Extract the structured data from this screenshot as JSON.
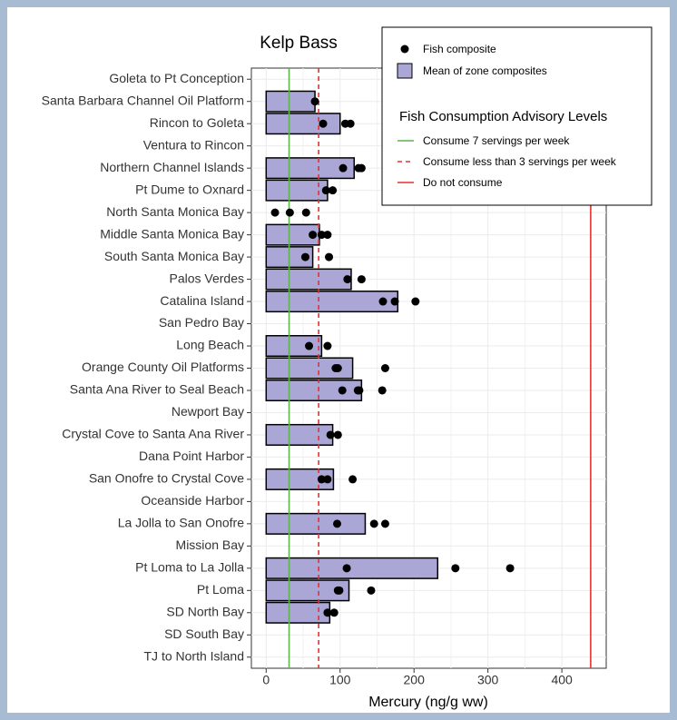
{
  "chart_data": {
    "type": "bar",
    "orientation": "horizontal",
    "title": "Kelp Bass",
    "x_label": "Mercury (ng/g ww)",
    "categories": [
      "Goleta to Pt Conception",
      "Santa Barbara Channel Oil Platform",
      "Rincon to Goleta",
      "Ventura to Rincon",
      "Northern Channel Islands",
      "Pt Dume to Oxnard",
      "North Santa Monica Bay",
      "Middle Santa Monica Bay",
      "South Santa Monica Bay",
      "Palos Verdes",
      "Catalina Island",
      "San Pedro Bay",
      "Long Beach",
      "Orange County Oil Platforms",
      "Santa Ana River to Seal Beach",
      "Newport Bay",
      "Crystal Cove to Santa Ana River",
      "Dana Point Harbor",
      "San Onofre to Crystal Cove",
      "Oceanside Harbor",
      "La Jolla to San Onofre",
      "Mission Bay",
      "Pt Loma to La Jolla",
      "Pt Loma",
      "SD North Bay",
      "SD South Bay",
      "TJ to North Island"
    ],
    "series": [
      {
        "name": "Mean of zone composites",
        "color": "#aaa6d6",
        "values": [
          null,
          66,
          100,
          null,
          119,
          83,
          null,
          72,
          63,
          115,
          178,
          null,
          75,
          117,
          129,
          null,
          90,
          null,
          91,
          null,
          134,
          null,
          232,
          112,
          86,
          null,
          null
        ]
      }
    ],
    "composites": {
      "name": "Fish composite",
      "color": "#000000",
      "values": [
        [],
        [
          66
        ],
        [
          77,
          107,
          114
        ],
        [],
        [
          104,
          125,
          129
        ],
        [
          81,
          90
        ],
        [
          12,
          32,
          54
        ],
        [
          63,
          75,
          83
        ],
        [
          53,
          85
        ],
        [
          110,
          129
        ],
        [
          158,
          174,
          202
        ],
        [],
        [
          58,
          83
        ],
        [
          94,
          97,
          161
        ],
        [
          103,
          124,
          126,
          157
        ],
        [],
        [
          87,
          97
        ],
        [],
        [
          75,
          83,
          117
        ],
        [],
        [
          96,
          146,
          161
        ],
        [],
        [
          109,
          256,
          330
        ],
        [
          97,
          99,
          142
        ],
        [
          83,
          92
        ],
        [],
        []
      ]
    },
    "reference_lines": {
      "title": "Fish Consumption Advisory Levels",
      "lines": [
        {
          "name": "Consume 7 servings per week",
          "value": 31,
          "color": "#5cb54a",
          "style": "solid"
        },
        {
          "name": "Consume less than 3 servings per week",
          "value": 71,
          "color": "#e8302e",
          "style": "dashed"
        },
        {
          "name": "Do not consume",
          "value": 439,
          "color": "#e8302e",
          "style": "solid"
        }
      ]
    },
    "xlim": [
      -20,
      460
    ],
    "xticks": [
      0,
      100,
      200,
      300,
      400
    ],
    "grid": true
  }
}
